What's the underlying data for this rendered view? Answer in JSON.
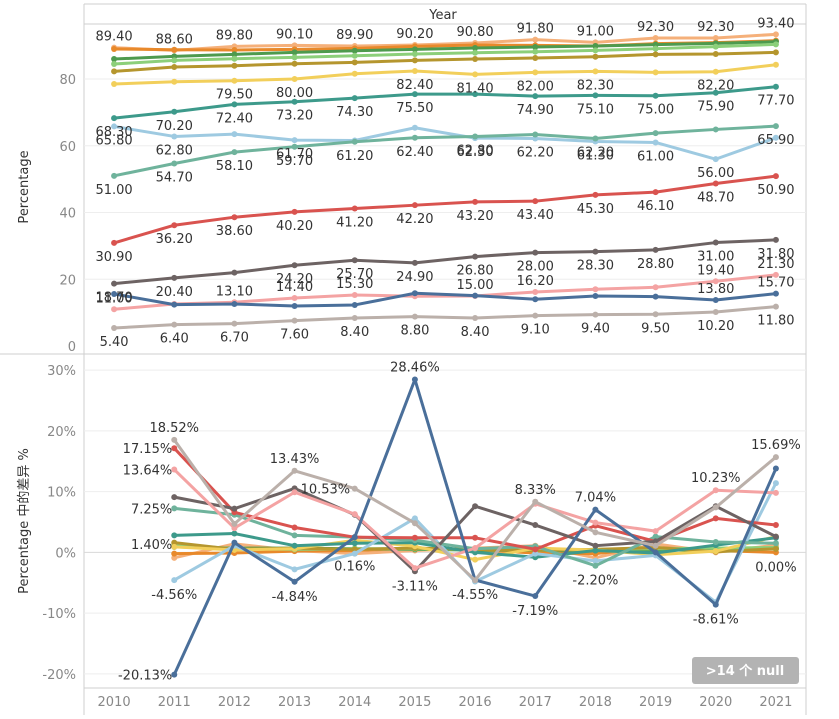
{
  "chart_data": {
    "type": "line",
    "header": "Year",
    "x": [
      2010,
      2011,
      2012,
      2013,
      2014,
      2015,
      2016,
      2017,
      2018,
      2019,
      2020,
      2021
    ],
    "top": {
      "ylabel": "Percentage",
      "ylim": [
        0,
        95
      ],
      "yticks": [
        0,
        20,
        40,
        60,
        80
      ],
      "series": [
        {
          "color": "#f5b07a",
          "values": [
            89.4,
            88.6,
            89.8,
            90.1,
            89.9,
            90.2,
            90.8,
            91.8,
            91.0,
            92.3,
            92.3,
            93.4
          ],
          "show_labels": true,
          "label_pos": "above"
        },
        {
          "color": "#e8892b",
          "values": [
            89.0,
            88.8,
            88.7,
            88.9,
            89.2,
            89.8,
            90.2,
            90.1,
            89.9,
            90.6,
            90.9,
            91.5
          ],
          "show_labels": false
        },
        {
          "color": "#4e9a4e",
          "values": [
            86.0,
            86.8,
            87.4,
            88.0,
            88.5,
            88.9,
            89.3,
            89.6,
            89.9,
            90.3,
            90.7,
            91.2
          ],
          "show_labels": false
        },
        {
          "color": "#8ccf7a",
          "values": [
            84.5,
            85.6,
            86.1,
            86.5,
            87.0,
            87.5,
            87.9,
            88.2,
            88.6,
            89.1,
            89.7,
            90.4
          ],
          "show_labels": false
        },
        {
          "color": "#b5962e",
          "values": [
            82.3,
            83.6,
            84.0,
            84.6,
            85.0,
            85.6,
            86.0,
            86.3,
            86.7,
            87.4,
            87.5,
            88.0
          ],
          "show_labels": false
        },
        {
          "color": "#f2cf5b",
          "values": [
            78.5,
            79.2,
            79.5,
            80.0,
            81.6,
            82.4,
            81.4,
            82.0,
            82.3,
            82.0,
            82.2,
            84.3
          ],
          "labels": [
            "",
            "",
            "79.50",
            "80.00",
            "",
            "82.40",
            "81.40",
            "82.00",
            "82.30",
            "",
            "82.20",
            ""
          ],
          "label_pos": "below"
        },
        {
          "color": "#3d9a8b",
          "values": [
            68.3,
            70.2,
            72.4,
            73.2,
            74.3,
            75.5,
            75.5,
            74.9,
            75.1,
            75.0,
            75.9,
            77.7
          ],
          "labels": [
            "68.30",
            "70.20",
            "72.40",
            "73.20",
            "74.30",
            "75.50",
            "",
            "74.90",
            "75.10",
            "75.00",
            "75.90",
            "77.70"
          ],
          "label_pos": "below"
        },
        {
          "color": "#9ecae1",
          "values": [
            65.8,
            62.8,
            63.5,
            61.7,
            61.6,
            65.4,
            62.3,
            62.2,
            61.3,
            61.0,
            56.0,
            62.4
          ],
          "labels": [
            "65.80",
            "62.80",
            "",
            "61.70",
            "",
            "",
            "62.30",
            "62.20",
            "61.30",
            "61.00",
            "56.00",
            ""
          ],
          "label_pos": "below"
        },
        {
          "color": "#6fb39c",
          "values": [
            51.0,
            54.7,
            58.1,
            59.7,
            61.2,
            62.4,
            62.8,
            63.4,
            62.2,
            63.8,
            64.9,
            65.9
          ],
          "labels": [
            "51.00",
            "54.70",
            "58.10",
            "59.70",
            "61.20",
            "62.40",
            "62.80",
            "",
            "62.20",
            "",
            "",
            "65.90"
          ],
          "label_pos": "below"
        },
        {
          "color": "#d9534f",
          "values": [
            30.9,
            36.2,
            38.6,
            40.2,
            41.2,
            42.2,
            43.2,
            43.4,
            45.3,
            46.1,
            48.7,
            50.9
          ],
          "show_labels": true,
          "label_pos": "below"
        },
        {
          "color": "#6d6363",
          "values": [
            18.7,
            20.4,
            22.0,
            24.2,
            25.7,
            24.9,
            26.8,
            28.0,
            28.3,
            28.8,
            31.0,
            31.8
          ],
          "labels": [
            "18.70",
            "20.40",
            "",
            "24.20",
            "25.70",
            "24.90",
            "26.80",
            "28.00",
            "28.30",
            "28.80",
            "31.00",
            "31.80"
          ],
          "label_pos": "below"
        },
        {
          "color": "#f4a3a3",
          "values": [
            11.0,
            12.6,
            13.1,
            14.4,
            15.3,
            14.9,
            15.0,
            16.2,
            17.0,
            17.6,
            19.4,
            21.3
          ],
          "labels": [
            "11.00",
            "",
            "13.10",
            "14.40",
            "15.30",
            "",
            "15.00",
            "16.20",
            "",
            "",
            "19.40",
            "21.30"
          ],
          "label_pos": "above"
        },
        {
          "color": "#4a6f9a",
          "values": [
            15.6,
            12.4,
            12.6,
            12.0,
            12.3,
            15.8,
            15.1,
            14.0,
            15.0,
            14.8,
            13.8,
            15.7
          ],
          "labels": [
            "",
            "",
            "",
            "",
            "",
            "",
            "",
            "",
            "",
            "",
            "13.80",
            "15.70"
          ],
          "label_pos": "above"
        },
        {
          "color": "#bbb0aa",
          "values": [
            5.4,
            6.4,
            6.7,
            7.6,
            8.4,
            8.8,
            8.4,
            9.1,
            9.4,
            9.5,
            10.2,
            11.8
          ],
          "show_labels": true,
          "label_pos": "below"
        }
      ]
    },
    "bottom": {
      "ylabel": "Percentage 中的差异 %",
      "ylim": [
        -22,
        32
      ],
      "yticks": [
        -20,
        -10,
        0,
        10,
        20,
        30
      ],
      "tick_suffix": "%",
      "badge": ">14 个 null",
      "series": [
        {
          "color": "#f5b07a",
          "values": [
            null,
            -0.9,
            1.4,
            0.3,
            -0.2,
            0.3,
            0.7,
            1.1,
            -0.9,
            1.4,
            0.0,
            1.2
          ]
        },
        {
          "color": "#e8892b",
          "values": [
            null,
            -0.2,
            -0.1,
            0.2,
            0.3,
            0.7,
            0.4,
            -0.1,
            -0.2,
            0.8,
            0.3,
            0.0
          ]
        },
        {
          "color": "#4e9a4e",
          "values": [
            null,
            0.9,
            0.7,
            0.7,
            0.6,
            0.5,
            0.4,
            0.3,
            0.3,
            0.4,
            0.4,
            0.6
          ]
        },
        {
          "color": "#8ccf7a",
          "values": [
            null,
            1.3,
            0.6,
            0.5,
            0.6,
            0.6,
            0.5,
            0.3,
            0.5,
            0.6,
            0.7,
            0.8
          ]
        },
        {
          "color": "#b5962e",
          "values": [
            null,
            1.6,
            0.5,
            0.7,
            0.5,
            0.7,
            0.5,
            0.3,
            0.5,
            0.8,
            0.1,
            0.6
          ]
        },
        {
          "color": "#f2cf5b",
          "values": [
            null,
            0.9,
            0.4,
            0.6,
            2.0,
            1.0,
            -1.2,
            0.7,
            0.4,
            -0.4,
            0.2,
            2.6
          ]
        },
        {
          "color": "#3d9a8b",
          "values": [
            null,
            2.8,
            3.1,
            1.1,
            1.5,
            1.6,
            0.0,
            -0.8,
            0.3,
            -0.1,
            1.2,
            2.4
          ]
        },
        {
          "color": "#9ecae1",
          "values": [
            null,
            -4.56,
            1.1,
            -2.8,
            -0.2,
            5.6,
            -4.8,
            -0.2,
            -1.4,
            -0.5,
            -8.2,
            11.4
          ]
        },
        {
          "color": "#6fb39c",
          "values": [
            null,
            7.25,
            6.2,
            2.8,
            2.5,
            2.0,
            0.6,
            1.0,
            -2.2,
            2.6,
            1.7,
            1.5
          ]
        },
        {
          "color": "#d9534f",
          "values": [
            null,
            17.15,
            6.6,
            4.1,
            2.5,
            2.4,
            2.4,
            0.5,
            4.4,
            1.8,
            5.6,
            4.5
          ]
        },
        {
          "color": "#6d6363",
          "values": [
            null,
            9.1,
            7.2,
            10.53,
            6.2,
            -3.11,
            7.6,
            4.5,
            1.1,
            1.8,
            7.6,
            2.6
          ]
        },
        {
          "color": "#f4a3a3",
          "values": [
            null,
            13.64,
            4.0,
            9.9,
            6.3,
            -2.6,
            0.7,
            8.0,
            4.9,
            3.5,
            10.23,
            9.8
          ]
        },
        {
          "color": "#4a6f9a",
          "values": [
            null,
            -20.13,
            1.6,
            -4.84,
            2.5,
            28.46,
            -4.55,
            -7.19,
            7.04,
            0.0,
            -8.61,
            13.8
          ]
        },
        {
          "color": "#bbb0aa",
          "values": [
            null,
            18.52,
            4.7,
            13.43,
            10.5,
            4.8,
            -4.6,
            8.33,
            3.3,
            1.1,
            7.4,
            15.69
          ]
        }
      ],
      "annotations": [
        {
          "x": 2011,
          "y": 18.52,
          "text": "18.52%",
          "pos": "above"
        },
        {
          "x": 2011,
          "y": 17.15,
          "text": "17.15%",
          "pos": "left"
        },
        {
          "x": 2011,
          "y": 13.64,
          "text": "13.64%",
          "pos": "left"
        },
        {
          "x": 2011,
          "y": 7.25,
          "text": "7.25%",
          "pos": "left"
        },
        {
          "x": 2011,
          "y": 1.4,
          "text": "1.40%",
          "pos": "left"
        },
        {
          "x": 2011,
          "y": -4.56,
          "text": "-4.56%",
          "pos": "below"
        },
        {
          "x": 2011,
          "y": -20.13,
          "text": "-20.13%",
          "pos": "left"
        },
        {
          "x": 2013,
          "y": 13.43,
          "text": "13.43%",
          "pos": "above"
        },
        {
          "x": 2013,
          "y": 10.53,
          "text": "10.53%",
          "pos": "right"
        },
        {
          "x": 2013,
          "y": -4.84,
          "text": "-4.84%",
          "pos": "below"
        },
        {
          "x": 2014,
          "y": 0.16,
          "text": "0.16%",
          "pos": "below"
        },
        {
          "x": 2015,
          "y": 28.46,
          "text": "28.46%",
          "pos": "above"
        },
        {
          "x": 2015,
          "y": -3.11,
          "text": "-3.11%",
          "pos": "below"
        },
        {
          "x": 2016,
          "y": -4.55,
          "text": "-4.55%",
          "pos": "below"
        },
        {
          "x": 2017,
          "y": 8.33,
          "text": "8.33%",
          "pos": "above"
        },
        {
          "x": 2017,
          "y": -7.19,
          "text": "-7.19%",
          "pos": "below"
        },
        {
          "x": 2018,
          "y": 7.04,
          "text": "7.04%",
          "pos": "above"
        },
        {
          "x": 2018,
          "y": -2.2,
          "text": "-2.20%",
          "pos": "below"
        },
        {
          "x": 2020,
          "y": 10.23,
          "text": "10.23%",
          "pos": "above"
        },
        {
          "x": 2020,
          "y": -8.61,
          "text": "-8.61%",
          "pos": "below"
        },
        {
          "x": 2021,
          "y": 15.69,
          "text": "15.69%",
          "pos": "above"
        },
        {
          "x": 2021,
          "y": 0.0,
          "text": "0.00%",
          "pos": "below"
        }
      ]
    }
  }
}
